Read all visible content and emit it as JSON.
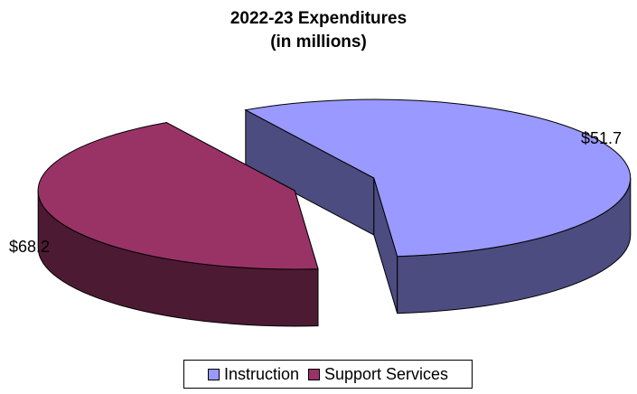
{
  "chart_data": {
    "type": "pie",
    "style": "3d exploded",
    "title": "2022-23 Expenditures",
    "subtitle": "(in millions)",
    "categories": [
      "Instruction",
      "Support Services"
    ],
    "values": [
      68.2,
      51.7
    ],
    "value_labels": [
      "$68.2",
      "$51.7"
    ],
    "colors": {
      "Instruction": {
        "top": "#9999ff",
        "side": "#4c4c80"
      },
      "Support Services": {
        "top": "#993366",
        "side": "#4d1a33"
      }
    },
    "legend": {
      "position": "bottom",
      "entries": [
        "Instruction",
        "Support Services"
      ]
    }
  }
}
